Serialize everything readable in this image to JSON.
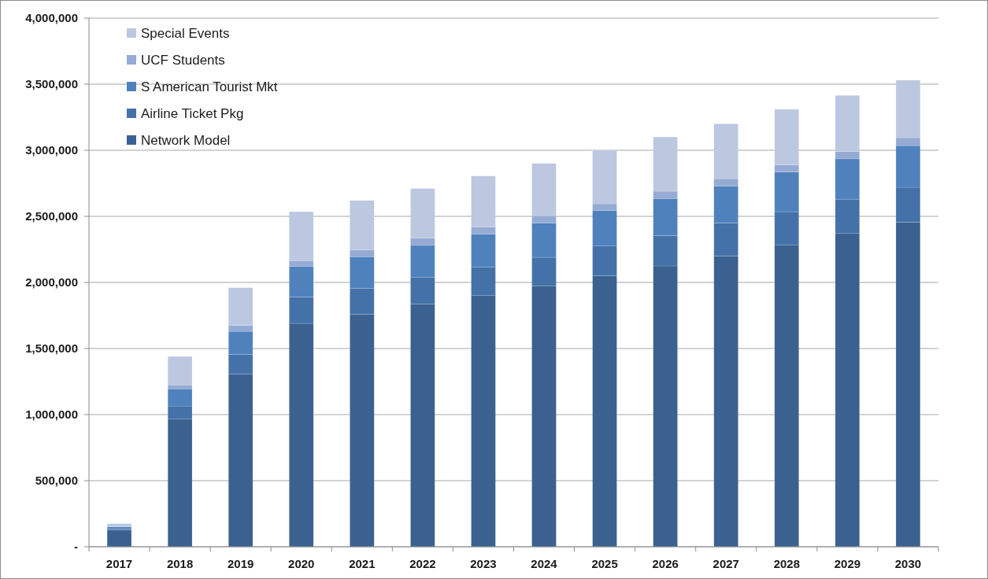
{
  "chart_data": {
    "type": "bar",
    "stacked": true,
    "categories": [
      "2017",
      "2018",
      "2019",
      "2020",
      "2021",
      "2022",
      "2023",
      "2024",
      "2025",
      "2026",
      "2027",
      "2028",
      "2029",
      "2030"
    ],
    "series": [
      {
        "name": "Network Model",
        "color": "#3b6190",
        "values": [
          125000,
          965000,
          1305000,
          1690000,
          1760000,
          1835000,
          1900000,
          1975000,
          2050000,
          2125000,
          2200000,
          2285000,
          2370000,
          2455000
        ]
      },
      {
        "name": "Airline Ticket Pkg",
        "color": "#4472a8",
        "values": [
          10000,
          100000,
          150000,
          200000,
          195000,
          205000,
          215000,
          215000,
          225000,
          230000,
          250000,
          250000,
          260000,
          265000
        ]
      },
      {
        "name": "S American Tourist Mkt",
        "color": "#4f81bd",
        "values": [
          15000,
          130000,
          175000,
          230000,
          240000,
          240000,
          250000,
          260000,
          270000,
          280000,
          280000,
          300000,
          305000,
          315000
        ]
      },
      {
        "name": "UCF Students",
        "color": "#95abd3",
        "values": [
          null,
          30000,
          45000,
          45000,
          50000,
          55000,
          55000,
          55000,
          50000,
          55000,
          55000,
          55000,
          55000,
          60000
        ]
      },
      {
        "name": "Special Events",
        "color": "#bcc8e0",
        "values": [
          25000,
          215000,
          285000,
          370000,
          375000,
          375000,
          385000,
          395000,
          405000,
          410000,
          415000,
          420000,
          425000,
          435000
        ]
      }
    ],
    "ylim": [
      0,
      4000000
    ],
    "yticks": [
      {
        "value": 0,
        "label": "-"
      },
      {
        "value": 500000,
        "label": "500,000"
      },
      {
        "value": 1000000,
        "label": "1,000,000"
      },
      {
        "value": 1500000,
        "label": "1,500,000"
      },
      {
        "value": 2000000,
        "label": "2,000,000"
      },
      {
        "value": 2500000,
        "label": "2,500,000"
      },
      {
        "value": 3000000,
        "label": "3,000,000"
      },
      {
        "value": 3500000,
        "label": "3,500,000"
      },
      {
        "value": 4000000,
        "label": "4,000,000"
      }
    ],
    "grid": "y",
    "legend": "top left"
  }
}
